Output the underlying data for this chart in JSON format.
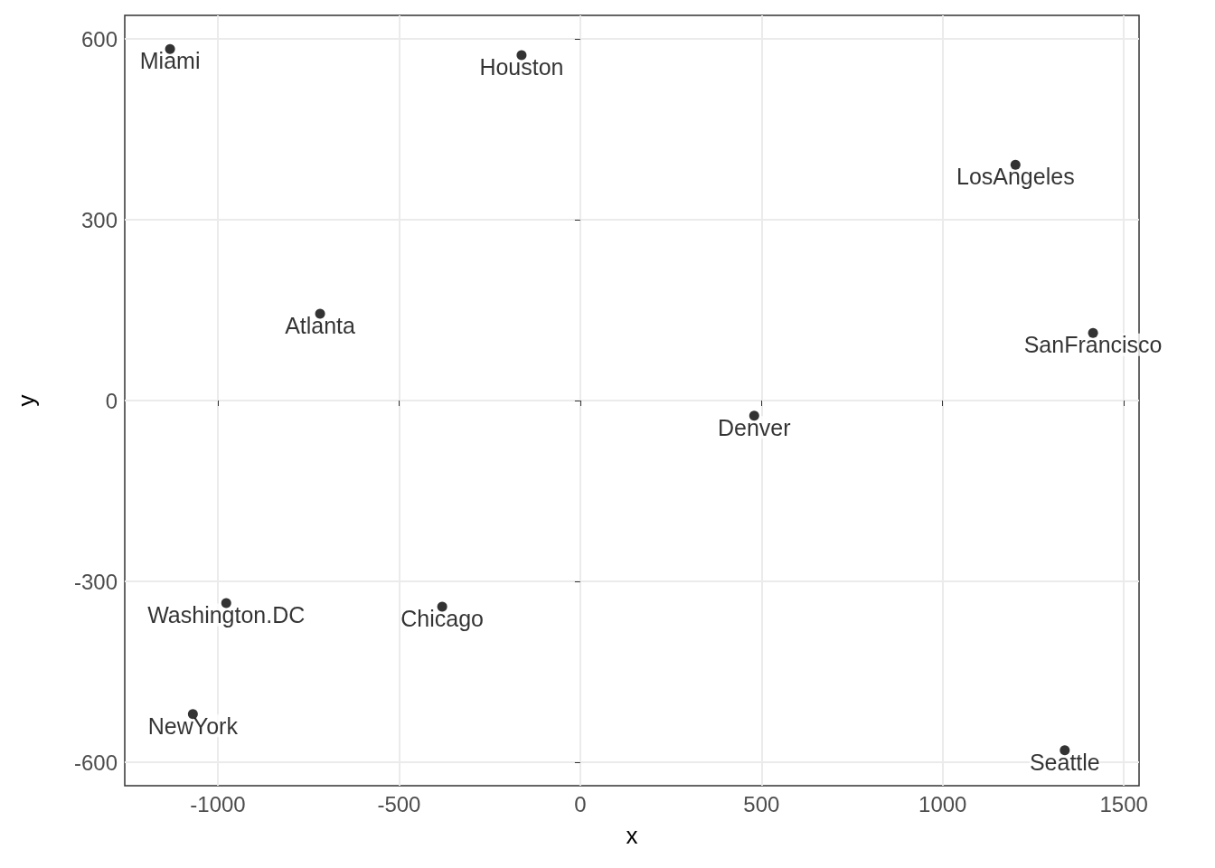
{
  "chart_data": {
    "type": "scatter",
    "xlabel": "x",
    "ylabel": "y",
    "x": [
      -1132,
      -162,
      1201,
      -718,
      1415,
      480,
      -977,
      -381,
      -1069,
      1337
    ],
    "values": [
      583,
      573,
      391,
      144,
      112,
      -25,
      -336,
      -342,
      -520,
      -580
    ],
    "color": "#000000",
    "marker": "circle",
    "grid": true,
    "xlim": [
      -1257,
      1542
    ],
    "xticks": [
      -1000,
      -500,
      0,
      500,
      1000,
      1500
    ],
    "ylim": [
      -639,
      639
    ],
    "yticks": [
      -600,
      -300,
      0,
      300,
      600
    ],
    "annotations": [
      {
        "text": "Miami",
        "x": -1132,
        "y": 583
      },
      {
        "text": "Houston",
        "x": -162,
        "y": 573
      },
      {
        "text": "LosAngeles",
        "x": 1201,
        "y": 391
      },
      {
        "text": "Atlanta",
        "x": -718,
        "y": 144
      },
      {
        "text": "SanFrancisco",
        "x": 1415,
        "y": 112
      },
      {
        "text": "Denver",
        "x": 480,
        "y": -25
      },
      {
        "text": "Washington.DC",
        "x": -977,
        "y": -336
      },
      {
        "text": "Chicago",
        "x": -381,
        "y": -342
      },
      {
        "text": "NewYork",
        "x": -1069,
        "y": -520
      },
      {
        "text": "Seattle",
        "x": 1337,
        "y": -580
      }
    ]
  }
}
